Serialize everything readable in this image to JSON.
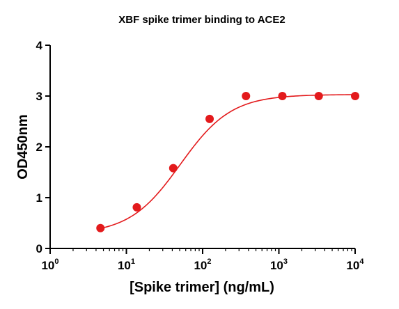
{
  "chart_data": {
    "type": "scatter",
    "title": "XBF spike trimer binding to ACE2",
    "xlabel": "[Spike trimer] (ng/mL)",
    "ylabel": "OD450nm",
    "x_scale": "log",
    "xlim": [
      1,
      10000
    ],
    "ylim": [
      0,
      4
    ],
    "x_ticks": [
      {
        "value": 1,
        "base": "10",
        "exp": "0"
      },
      {
        "value": 10,
        "base": "10",
        "exp": "1"
      },
      {
        "value": 100,
        "base": "10",
        "exp": "2"
      },
      {
        "value": 1000,
        "base": "10",
        "exp": "3"
      },
      {
        "value": 10000,
        "base": "10",
        "exp": "4"
      }
    ],
    "y_ticks": [
      0,
      1,
      2,
      3,
      4
    ],
    "grid": false,
    "series": [
      {
        "color": "#e31a1c",
        "marker": "circle",
        "x": [
          4.57,
          13.7,
          41.2,
          123.5,
          370.4,
          1111,
          3333,
          10000
        ],
        "y": [
          0.4,
          0.81,
          1.58,
          2.55,
          3.0,
          3.0,
          3.0,
          3.0
        ],
        "fit": {
          "type": "sigmoidal",
          "bottom": 0.28,
          "top": 3.03,
          "ec50": 51,
          "hill": 1.3
        }
      }
    ]
  }
}
